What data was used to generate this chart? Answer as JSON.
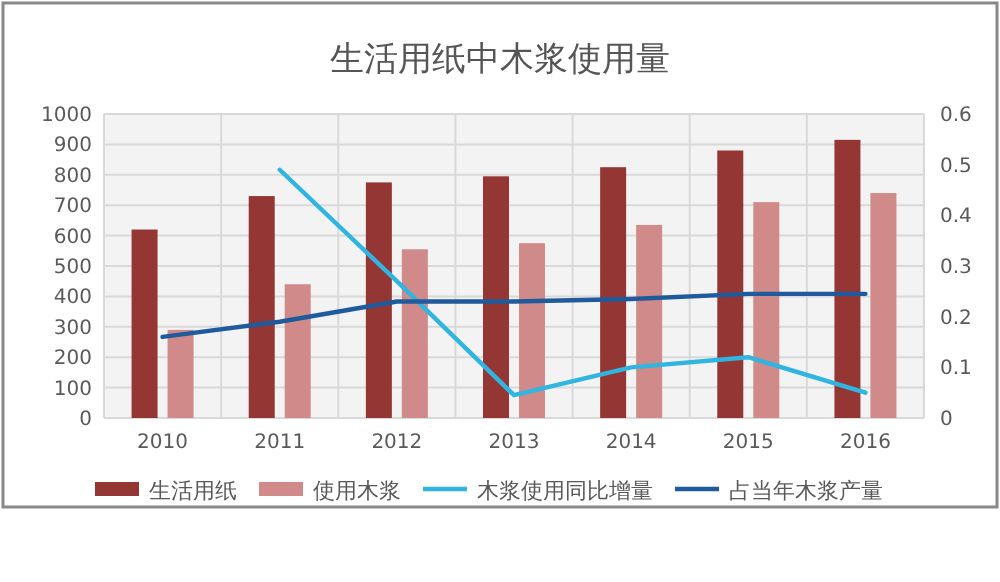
{
  "chart_data": {
    "type": "bar",
    "title": "生活用纸中木浆使用量",
    "categories": [
      "2010",
      "2011",
      "2012",
      "2013",
      "2014",
      "2015",
      "2016"
    ],
    "series": [
      {
        "name": "生活用纸",
        "color": "#943634",
        "values": [
          620,
          730,
          775,
          795,
          825,
          880,
          915
        ]
      },
      {
        "name": "使用木浆",
        "color": "#d08a89",
        "values": [
          290,
          440,
          555,
          575,
          635,
          710,
          740
        ]
      },
      {
        "name": "木浆使用同比增量",
        "color": "#2fb5e0",
        "type": "line",
        "axis": "y2",
        "values": [
          null,
          0.49,
          0.27,
          0.045,
          0.1,
          0.12,
          0.05
        ]
      },
      {
        "name": "占当年木浆产量",
        "color": "#1f5b9c",
        "type": "line",
        "axis": "y2",
        "values": [
          0.16,
          0.19,
          0.23,
          0.23,
          0.235,
          0.245,
          0.245
        ]
      }
    ],
    "ylim": [
      0,
      1000
    ],
    "yticks": [
      0,
      100,
      200,
      300,
      400,
      500,
      600,
      700,
      800,
      900,
      1000
    ],
    "y2lim": [
      0,
      0.6
    ],
    "y2ticks": [
      0,
      0.1,
      0.2,
      0.3,
      0.4,
      0.5,
      0.6
    ],
    "grid": true,
    "legend": "bottom",
    "marker": "none",
    "line_style": "solid"
  }
}
